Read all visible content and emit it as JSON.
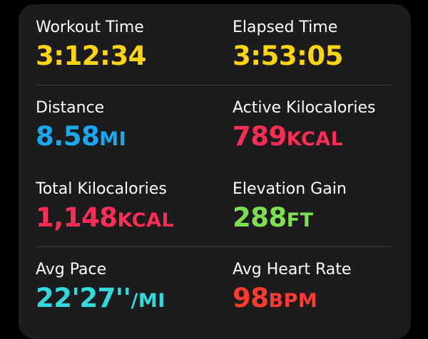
{
  "colors": {
    "time": "#ffd60a",
    "distance": "#1aa8f0",
    "calories": "#ff2d55",
    "elevation": "#7ee050",
    "pace": "#33d9dd",
    "heart_rate": "#ff3b30"
  },
  "metrics": [
    {
      "label": "Workout Time",
      "value": "3:12:34",
      "unit": ""
    },
    {
      "label": "Elapsed Time",
      "value": "3:53:05",
      "unit": ""
    },
    {
      "label": "Distance",
      "value": "8.58",
      "unit": "MI"
    },
    {
      "label": "Active Kilocalories",
      "value": "789",
      "unit": "KCAL"
    },
    {
      "label": "Total Kilocalories",
      "value": "1,148",
      "unit": "KCAL"
    },
    {
      "label": "Elevation Gain",
      "value": "288",
      "unit": "FT"
    },
    {
      "label": "Avg Pace",
      "value": "22'27''",
      "unit": "/MI"
    },
    {
      "label": "Avg Heart Rate",
      "value": "98",
      "unit": "BPM"
    }
  ]
}
